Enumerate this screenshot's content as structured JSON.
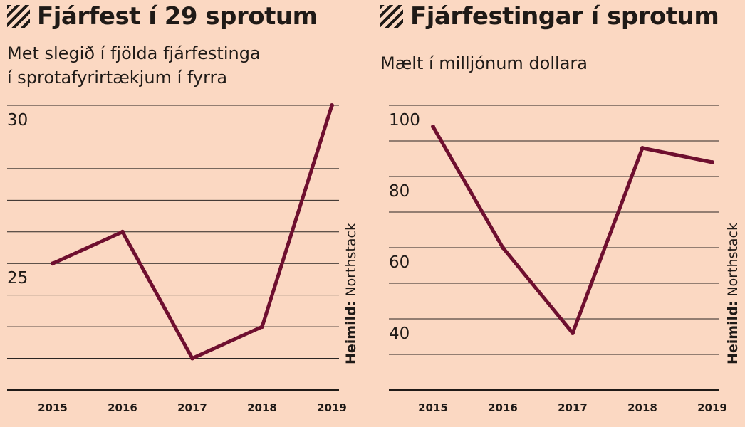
{
  "charts": [
    {
      "title": "Fjárfest í 29 sprotum",
      "subtitle": "Met slegið í fjölda fjárfestinga\ní sprotafyrirtækjum í fyrra",
      "source_label": "Heimild:",
      "source_name": "Northstack"
    },
    {
      "title": "Fjárfestingar í sprotum",
      "subtitle": "Mælt í milljónum dollara",
      "source_label": "Heimild:",
      "source_name": "Northstack"
    }
  ],
  "chart_data": [
    {
      "type": "line",
      "title": "Fjárfest í 29 sprotum",
      "subtitle": "Met slegið í fjölda fjárfestinga í sprotafyrirtækjum í fyrra",
      "categories": [
        "2015",
        "2016",
        "2017",
        "2018",
        "2019"
      ],
      "values": [
        25,
        26,
        22,
        23,
        30
      ],
      "ylim": [
        21,
        30
      ],
      "yticks": [
        21,
        22,
        23,
        24,
        25,
        26,
        27,
        28,
        29,
        30
      ],
      "ytick_labels": {
        "25": "25",
        "30": "30"
      },
      "grid": true,
      "line_color": "#6e0f2f"
    },
    {
      "type": "line",
      "title": "Fjárfestingar í sprotum",
      "subtitle": "Mælt í milljónum dollara",
      "categories": [
        "2015",
        "2016",
        "2017",
        "2018",
        "2019"
      ],
      "values": [
        94,
        60,
        36,
        88,
        84
      ],
      "ylim": [
        20,
        100
      ],
      "yticks": [
        20,
        30,
        40,
        50,
        60,
        70,
        80,
        90,
        100
      ],
      "ytick_labels": {
        "40": "40",
        "60": "60",
        "80": "80",
        "100": "100"
      },
      "grid": true,
      "line_color": "#6e0f2f"
    }
  ]
}
